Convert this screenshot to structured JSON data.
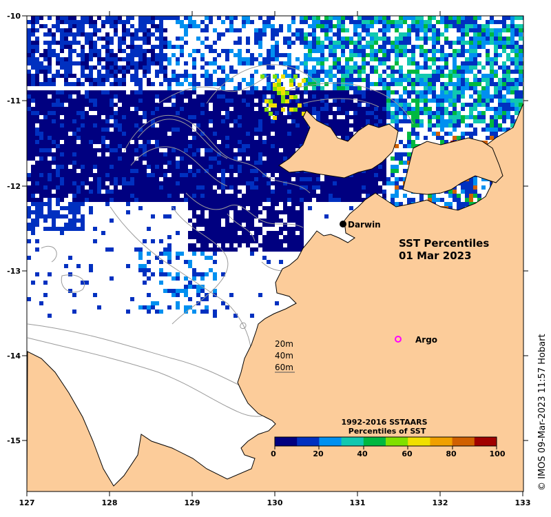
{
  "map": {
    "title_line1": "SST Percentiles",
    "title_line2": "01 Mar 2023",
    "credit": "© IMOS 09-Mar-2023 11:57 Hobart",
    "lon_ticks": [
      "127",
      "128",
      "129",
      "130",
      "131",
      "132",
      "133"
    ],
    "lat_ticks": [
      "-10",
      "-11",
      "-12",
      "-13",
      "-14",
      "-15"
    ],
    "places": [
      {
        "name": "Darwin",
        "marker": "filled-dot"
      },
      {
        "name": "Argo",
        "marker": "magenta-ring"
      }
    ],
    "contour_legend": [
      "20m",
      "40m",
      "60m"
    ],
    "colorbar": {
      "title_line1": "1992-2016 SSTAARS",
      "title_line2": "Percentiles of SST",
      "labels": [
        "0",
        "20",
        "40",
        "60",
        "80",
        "100"
      ],
      "colors": [
        "#000080",
        "#0030c0",
        "#0090f0",
        "#10c8b0",
        "#00b840",
        "#80e000",
        "#f0e000",
        "#f0a000",
        "#d06000",
        "#a00000"
      ]
    },
    "colors": {
      "land": "#fccc9a",
      "coast": "#000000",
      "contour": "#9a9a9a",
      "argo": "#ff00ff"
    }
  }
}
